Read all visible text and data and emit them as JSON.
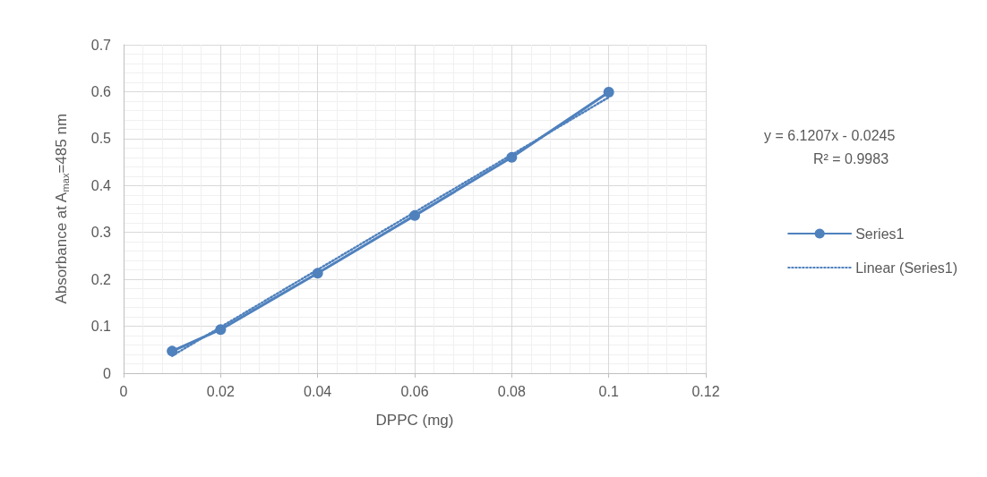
{
  "chart_data": {
    "type": "line",
    "xlabel": "DPPC (mg)",
    "ylabel": "Absorbance at A$_{max}$=485 nm",
    "x": [
      0.01,
      0.02,
      0.04,
      0.06,
      0.08,
      0.1
    ],
    "series": [
      {
        "name": "Series1",
        "color": "#4f81bd",
        "marker": "circle",
        "line_style": "solid",
        "values": [
          0.047,
          0.093,
          0.213,
          0.336,
          0.46,
          0.599
        ]
      },
      {
        "name": "Linear (Series1)",
        "color": "#4f81bd",
        "marker": "none",
        "line_style": "dotted",
        "x": [
          0.01,
          0.1
        ],
        "values": [
          0.037,
          0.588
        ]
      }
    ],
    "xlim": [
      0,
      0.12
    ],
    "xticks": [
      0,
      0.02,
      0.04,
      0.06,
      0.08,
      0.1,
      0.12
    ],
    "ylim": [
      0,
      0.7
    ],
    "yticks": [
      0,
      0.1,
      0.2,
      0.3,
      0.4,
      0.5,
      0.6,
      0.7
    ],
    "grid": true,
    "legend": "right",
    "annotations": [
      "y = 6.1207x - 0.0245",
      "R² = 0.9983"
    ]
  }
}
